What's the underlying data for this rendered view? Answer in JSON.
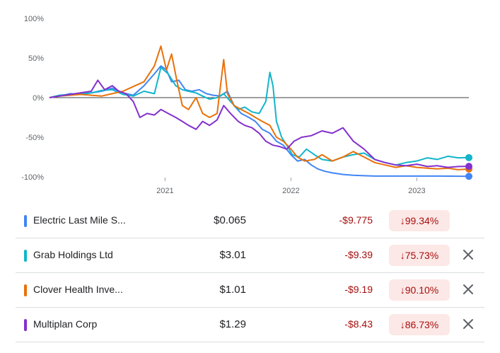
{
  "chart_data": {
    "type": "line",
    "xlabel": "",
    "ylabel": "",
    "x_ticks": [
      "2021",
      "2022",
      "2023"
    ],
    "y_ticks": [
      "100%",
      "50%",
      "0%",
      "-50%",
      "-100%"
    ],
    "ylim": [
      -100,
      100
    ],
    "x_range": [
      "2020-02",
      "2023-06"
    ],
    "grid": "horizontal baseline at 0%",
    "series": [
      {
        "name": "Electric Last Mile S...",
        "color": "#4285f4",
        "points": [
          [
            "2020-02-01",
            0
          ],
          [
            "2020-03-01",
            2
          ],
          [
            "2020-04-01",
            5
          ],
          [
            "2020-05-01",
            4
          ],
          [
            "2020-06-01",
            6
          ],
          [
            "2020-07-01",
            8
          ],
          [
            "2020-08-01",
            12
          ],
          [
            "2020-09-01",
            6
          ],
          [
            "2020-10-01",
            3
          ],
          [
            "2020-11-01",
            15
          ],
          [
            "2020-12-01",
            30
          ],
          [
            "2020-12-20",
            40
          ],
          [
            "2021-01-05",
            35
          ],
          [
            "2021-01-20",
            20
          ],
          [
            "2021-02-10",
            22
          ],
          [
            "2021-03-01",
            10
          ],
          [
            "2021-03-20",
            8
          ],
          [
            "2021-04-10",
            10
          ],
          [
            "2021-05-01",
            5
          ],
          [
            "2021-05-20",
            3
          ],
          [
            "2021-06-10",
            2
          ],
          [
            "2021-07-01",
            8
          ],
          [
            "2021-07-20",
            -10
          ],
          [
            "2021-08-10",
            -20
          ],
          [
            "2021-09-01",
            -25
          ],
          [
            "2021-09-20",
            -30
          ],
          [
            "2021-10-10",
            -40
          ],
          [
            "2021-11-01",
            -45
          ],
          [
            "2021-11-20",
            -55
          ],
          [
            "2021-12-10",
            -60
          ],
          [
            "2022-01-01",
            -72
          ],
          [
            "2022-01-20",
            -80
          ],
          [
            "2022-02-10",
            -78
          ],
          [
            "2022-03-01",
            -85
          ],
          [
            "2022-03-20",
            -90
          ],
          [
            "2022-04-10",
            -93
          ],
          [
            "2022-05-01",
            -95
          ],
          [
            "2022-06-01",
            -97
          ],
          [
            "2022-07-01",
            -98
          ],
          [
            "2022-09-01",
            -99
          ],
          [
            "2022-12-01",
            -99
          ],
          [
            "2023-03-01",
            -99
          ],
          [
            "2023-06-01",
            -99.34
          ]
        ]
      },
      {
        "name": "Grab Holdings Ltd",
        "color": "#12b5cb",
        "points": [
          [
            "2020-02-01",
            0
          ],
          [
            "2020-03-01",
            3
          ],
          [
            "2020-04-01",
            4
          ],
          [
            "2020-05-01",
            5
          ],
          [
            "2020-06-01",
            6
          ],
          [
            "2020-07-01",
            9
          ],
          [
            "2020-08-01",
            10
          ],
          [
            "2020-09-01",
            4
          ],
          [
            "2020-10-01",
            2
          ],
          [
            "2020-11-01",
            8
          ],
          [
            "2020-12-01",
            5
          ],
          [
            "2020-12-20",
            38
          ],
          [
            "2021-01-10",
            30
          ],
          [
            "2021-02-01",
            15
          ],
          [
            "2021-02-20",
            10
          ],
          [
            "2021-03-10",
            8
          ],
          [
            "2021-04-01",
            6
          ],
          [
            "2021-04-20",
            2
          ],
          [
            "2021-05-10",
            -2
          ],
          [
            "2021-06-01",
            0
          ],
          [
            "2021-06-20",
            5
          ],
          [
            "2021-07-10",
            -5
          ],
          [
            "2021-08-01",
            -15
          ],
          [
            "2021-08-20",
            -12
          ],
          [
            "2021-09-10",
            -18
          ],
          [
            "2021-10-01",
            -20
          ],
          [
            "2021-10-20",
            -5
          ],
          [
            "2021-11-01",
            32
          ],
          [
            "2021-11-10",
            15
          ],
          [
            "2021-11-20",
            -30
          ],
          [
            "2021-12-05",
            -50
          ],
          [
            "2021-12-20",
            -60
          ],
          [
            "2022-01-05",
            -72
          ],
          [
            "2022-01-25",
            -75
          ],
          [
            "2022-02-15",
            -65
          ],
          [
            "2022-03-10",
            -72
          ],
          [
            "2022-04-01",
            -78
          ],
          [
            "2022-05-01",
            -80
          ],
          [
            "2022-06-01",
            -75
          ],
          [
            "2022-07-01",
            -72
          ],
          [
            "2022-08-01",
            -70
          ],
          [
            "2022-09-01",
            -78
          ],
          [
            "2022-10-01",
            -82
          ],
          [
            "2022-11-01",
            -85
          ],
          [
            "2022-12-01",
            -82
          ],
          [
            "2023-01-01",
            -80
          ],
          [
            "2023-02-01",
            -76
          ],
          [
            "2023-03-01",
            -78
          ],
          [
            "2023-04-01",
            -74
          ],
          [
            "2023-05-01",
            -76
          ],
          [
            "2023-06-01",
            -75.73
          ]
        ]
      },
      {
        "name": "Clover Health Inve...",
        "color": "#e8710a",
        "points": [
          [
            "2020-02-01",
            0
          ],
          [
            "2020-03-01",
            2
          ],
          [
            "2020-04-01",
            3
          ],
          [
            "2020-05-01",
            4
          ],
          [
            "2020-06-01",
            3
          ],
          [
            "2020-07-01",
            2
          ],
          [
            "2020-08-01",
            5
          ],
          [
            "2020-09-01",
            8
          ],
          [
            "2020-10-01",
            14
          ],
          [
            "2020-11-01",
            20
          ],
          [
            "2020-12-01",
            40
          ],
          [
            "2020-12-20",
            65
          ],
          [
            "2021-01-05",
            35
          ],
          [
            "2021-01-20",
            55
          ],
          [
            "2021-02-05",
            20
          ],
          [
            "2021-02-20",
            -10
          ],
          [
            "2021-03-10",
            -15
          ],
          [
            "2021-04-01",
            0
          ],
          [
            "2021-04-20",
            -20
          ],
          [
            "2021-05-10",
            -25
          ],
          [
            "2021-06-01",
            -20
          ],
          [
            "2021-06-20",
            48
          ],
          [
            "2021-07-01",
            5
          ],
          [
            "2021-07-20",
            -10
          ],
          [
            "2021-08-10",
            -15
          ],
          [
            "2021-09-01",
            -20
          ],
          [
            "2021-09-20",
            -25
          ],
          [
            "2021-10-10",
            -30
          ],
          [
            "2021-11-01",
            -35
          ],
          [
            "2021-11-20",
            -50
          ],
          [
            "2021-12-10",
            -55
          ],
          [
            "2022-01-01",
            -65
          ],
          [
            "2022-01-20",
            -75
          ],
          [
            "2022-02-10",
            -80
          ],
          [
            "2022-03-10",
            -78
          ],
          [
            "2022-04-01",
            -72
          ],
          [
            "2022-05-01",
            -80
          ],
          [
            "2022-06-01",
            -75
          ],
          [
            "2022-07-01",
            -68
          ],
          [
            "2022-08-01",
            -75
          ],
          [
            "2022-09-01",
            -82
          ],
          [
            "2022-10-01",
            -85
          ],
          [
            "2022-11-01",
            -88
          ],
          [
            "2022-12-01",
            -86
          ],
          [
            "2023-01-01",
            -88
          ],
          [
            "2023-02-01",
            -89
          ],
          [
            "2023-03-01",
            -90
          ],
          [
            "2023-04-01",
            -89
          ],
          [
            "2023-05-01",
            -91
          ],
          [
            "2023-06-01",
            -90.1
          ]
        ]
      },
      {
        "name": "Multiplan Corp",
        "color": "#8430ce",
        "points": [
          [
            "2020-02-01",
            0
          ],
          [
            "2020-03-01",
            2
          ],
          [
            "2020-04-01",
            4
          ],
          [
            "2020-05-01",
            6
          ],
          [
            "2020-06-01",
            8
          ],
          [
            "2020-06-20",
            22
          ],
          [
            "2020-07-10",
            10
          ],
          [
            "2020-08-01",
            15
          ],
          [
            "2020-08-20",
            8
          ],
          [
            "2020-09-10",
            5
          ],
          [
            "2020-10-01",
            -5
          ],
          [
            "2020-10-20",
            -25
          ],
          [
            "2020-11-10",
            -20
          ],
          [
            "2020-12-01",
            -22
          ],
          [
            "2020-12-20",
            -15
          ],
          [
            "2021-01-10",
            -20
          ],
          [
            "2021-02-01",
            -25
          ],
          [
            "2021-02-20",
            -30
          ],
          [
            "2021-03-10",
            -35
          ],
          [
            "2021-04-01",
            -40
          ],
          [
            "2021-04-20",
            -30
          ],
          [
            "2021-05-10",
            -35
          ],
          [
            "2021-06-01",
            -28
          ],
          [
            "2021-06-20",
            -10
          ],
          [
            "2021-07-10",
            -20
          ],
          [
            "2021-08-01",
            -30
          ],
          [
            "2021-08-20",
            -35
          ],
          [
            "2021-09-10",
            -38
          ],
          [
            "2021-10-01",
            -45
          ],
          [
            "2021-10-20",
            -55
          ],
          [
            "2021-11-10",
            -60
          ],
          [
            "2021-12-01",
            -62
          ],
          [
            "2021-12-20",
            -65
          ],
          [
            "2022-01-10",
            -55
          ],
          [
            "2022-02-01",
            -50
          ],
          [
            "2022-03-01",
            -48
          ],
          [
            "2022-04-01",
            -42
          ],
          [
            "2022-05-01",
            -45
          ],
          [
            "2022-06-01",
            -38
          ],
          [
            "2022-07-01",
            -55
          ],
          [
            "2022-08-01",
            -65
          ],
          [
            "2022-09-01",
            -78
          ],
          [
            "2022-10-01",
            -82
          ],
          [
            "2022-11-01",
            -85
          ],
          [
            "2022-12-01",
            -86
          ],
          [
            "2023-01-01",
            -84
          ],
          [
            "2023-02-01",
            -87
          ],
          [
            "2023-03-01",
            -86
          ],
          [
            "2023-04-01",
            -88
          ],
          [
            "2023-05-01",
            -87
          ],
          [
            "2023-06-01",
            -86.73
          ]
        ]
      }
    ]
  },
  "stocks": [
    {
      "name": "Electric Last Mile S...",
      "color": "#4285f4",
      "price": "$0.065",
      "change": "-$9.775",
      "pct": "↓99.34%",
      "removable": false
    },
    {
      "name": "Grab Holdings Ltd",
      "color": "#12b5cb",
      "price": "$3.01",
      "change": "-$9.39",
      "pct": "↓75.73%",
      "removable": true
    },
    {
      "name": "Clover Health Inve...",
      "color": "#e8710a",
      "price": "$1.01",
      "change": "-$9.19",
      "pct": "↓90.10%",
      "removable": true
    },
    {
      "name": "Multiplan Corp",
      "color": "#8430ce",
      "price": "$1.29",
      "change": "-$8.43",
      "pct": "↓86.73%",
      "removable": true
    }
  ],
  "icons": {
    "remove": "close-icon"
  }
}
